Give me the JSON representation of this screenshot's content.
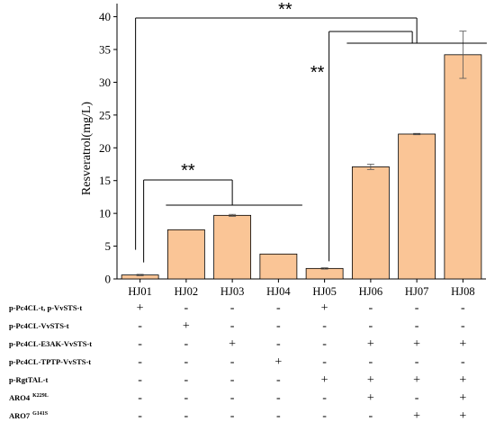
{
  "chart_data": {
    "type": "bar",
    "ylabel": "Resveratrol(mg/L)",
    "ylim": [
      0,
      42
    ],
    "yticks": [
      0,
      5,
      10,
      15,
      20,
      25,
      30,
      35,
      40
    ],
    "categories": [
      "HJ01",
      "HJ02",
      "HJ03",
      "HJ04",
      "HJ05",
      "HJ06",
      "HJ07",
      "HJ08"
    ],
    "values": [
      0.6,
      7.5,
      9.7,
      3.8,
      1.6,
      17.1,
      22.1,
      34.2
    ],
    "errors": [
      0.1,
      0.0,
      0.15,
      0.0,
      0.1,
      0.4,
      0.1,
      3.6
    ],
    "bar_color": "#FAC596",
    "significance": [
      {
        "label": "**",
        "from": "HJ01",
        "to": [
          "HJ06",
          "HJ07",
          "HJ08"
        ]
      },
      {
        "label": "**",
        "from": "HJ01",
        "to": [
          "HJ02",
          "HJ03",
          "HJ04"
        ]
      },
      {
        "label": "**",
        "from": "HJ05",
        "to": [
          "HJ06",
          "HJ07",
          "HJ08"
        ]
      }
    ],
    "genotype_table": {
      "rows": [
        {
          "label": "p-Pc4CL-t, p-VvSTS-t",
          "sup": "",
          "values": [
            "+",
            "-",
            "-",
            "-",
            "+",
            "-",
            "-",
            "-"
          ]
        },
        {
          "label": "p-Pc4CL-VvSTS-t",
          "sup": "",
          "values": [
            "-",
            "+",
            "-",
            "-",
            "-",
            "-",
            "-",
            "-"
          ]
        },
        {
          "label": "p-Pc4CL-E3AK-VvSTS-t",
          "sup": "",
          "values": [
            "-",
            "-",
            "+",
            "-",
            "-",
            "+",
            "+",
            "+"
          ]
        },
        {
          "label": "p-Pc4CL-TPTP-VvSTS-t",
          "sup": "",
          "values": [
            "-",
            "-",
            "-",
            "+",
            "-",
            "-",
            "-",
            "-"
          ]
        },
        {
          "label": "p-RgtTAL-t",
          "sup": "",
          "values": [
            "-",
            "-",
            "-",
            "-",
            "+",
            "+",
            "+",
            "+"
          ]
        },
        {
          "label": "ARO4",
          "sup": "K229L",
          "values": [
            "-",
            "-",
            "-",
            "-",
            "-",
            "+",
            "-",
            "+"
          ]
        },
        {
          "label": "ARO7",
          "sup": "G141S",
          "values": [
            "-",
            "-",
            "-",
            "-",
            "-",
            "-",
            "+",
            "+"
          ]
        }
      ]
    }
  }
}
